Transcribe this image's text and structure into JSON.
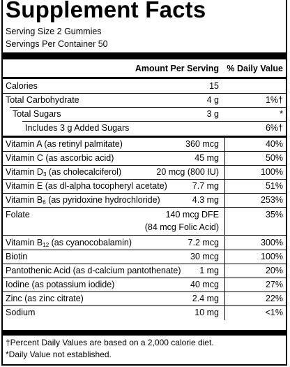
{
  "title": "Supplement Facts",
  "serving_size": "Serving Size 2 Gummies",
  "servings_per_container": "Servings Per Container 50",
  "header": {
    "amount": "Amount Per Serving",
    "dv": "% Daily Value"
  },
  "rows": {
    "calories": {
      "name": "Calories",
      "amount": "15",
      "dv": ""
    },
    "carb": {
      "name": "Total Carbohydrate",
      "amount": "4 g",
      "dv": "1%†"
    },
    "sugars": {
      "name": "Total Sugars",
      "amount": "3 g",
      "dv": "*"
    },
    "added": {
      "name": "Includes 3 g Added Sugars",
      "amount": "",
      "dv": "6%†"
    },
    "vita": {
      "name": "Vitamin A (as retinyl palmitate)",
      "amount": "360 mcg",
      "dv": "40%"
    },
    "vitc": {
      "name": "Vitamin C (as ascorbic acid)",
      "amount": "45 mg",
      "dv": "50%"
    },
    "vitd": {
      "name_pre": "Vitamin D",
      "name_sub": "3",
      "name_post": " (as cholecalciferol)",
      "amount": "20 mcg (800 IU)",
      "dv": "100%"
    },
    "vite": {
      "name": "Vitamin E (as dl-alpha tocopheryl acetate)",
      "amount": "7.7 mg",
      "dv": "51%"
    },
    "vitb6": {
      "name_pre": "Vitamin B",
      "name_sub": "6",
      "name_post": " (as pyridoxine hydrochloride)",
      "amount": "4.3 mg",
      "dv": "253%"
    },
    "folate": {
      "name": "Folate",
      "amount_line1": "140 mcg DFE",
      "amount_line2": "(84 mcg Folic Acid)",
      "dv": "35%"
    },
    "vitb12": {
      "name_pre": "Vitamin B",
      "name_sub": "12",
      "name_post": " (as cyanocobalamin)",
      "amount": "7.2 mcg",
      "dv": "300%"
    },
    "biotin": {
      "name": "Biotin",
      "amount": "30 mcg",
      "dv": "100%"
    },
    "panto": {
      "name": "Pantothenic Acid (as d-calcium pantothenate)",
      "amount": "1 mg",
      "dv": "20%"
    },
    "iodine": {
      "name": "Iodine (as potassium iodide)",
      "amount": "40 mcg",
      "dv": "27%"
    },
    "zinc": {
      "name": "Zinc (as zinc citrate)",
      "amount": "2.4 mg",
      "dv": "22%"
    },
    "sodium": {
      "name": "Sodium",
      "amount": "10 mg",
      "dv": "<1%"
    }
  },
  "footnotes": {
    "percent": "†Percent Daily Values are based on a 2,000 calorie diet.",
    "not_established": "*Daily Value not established."
  }
}
